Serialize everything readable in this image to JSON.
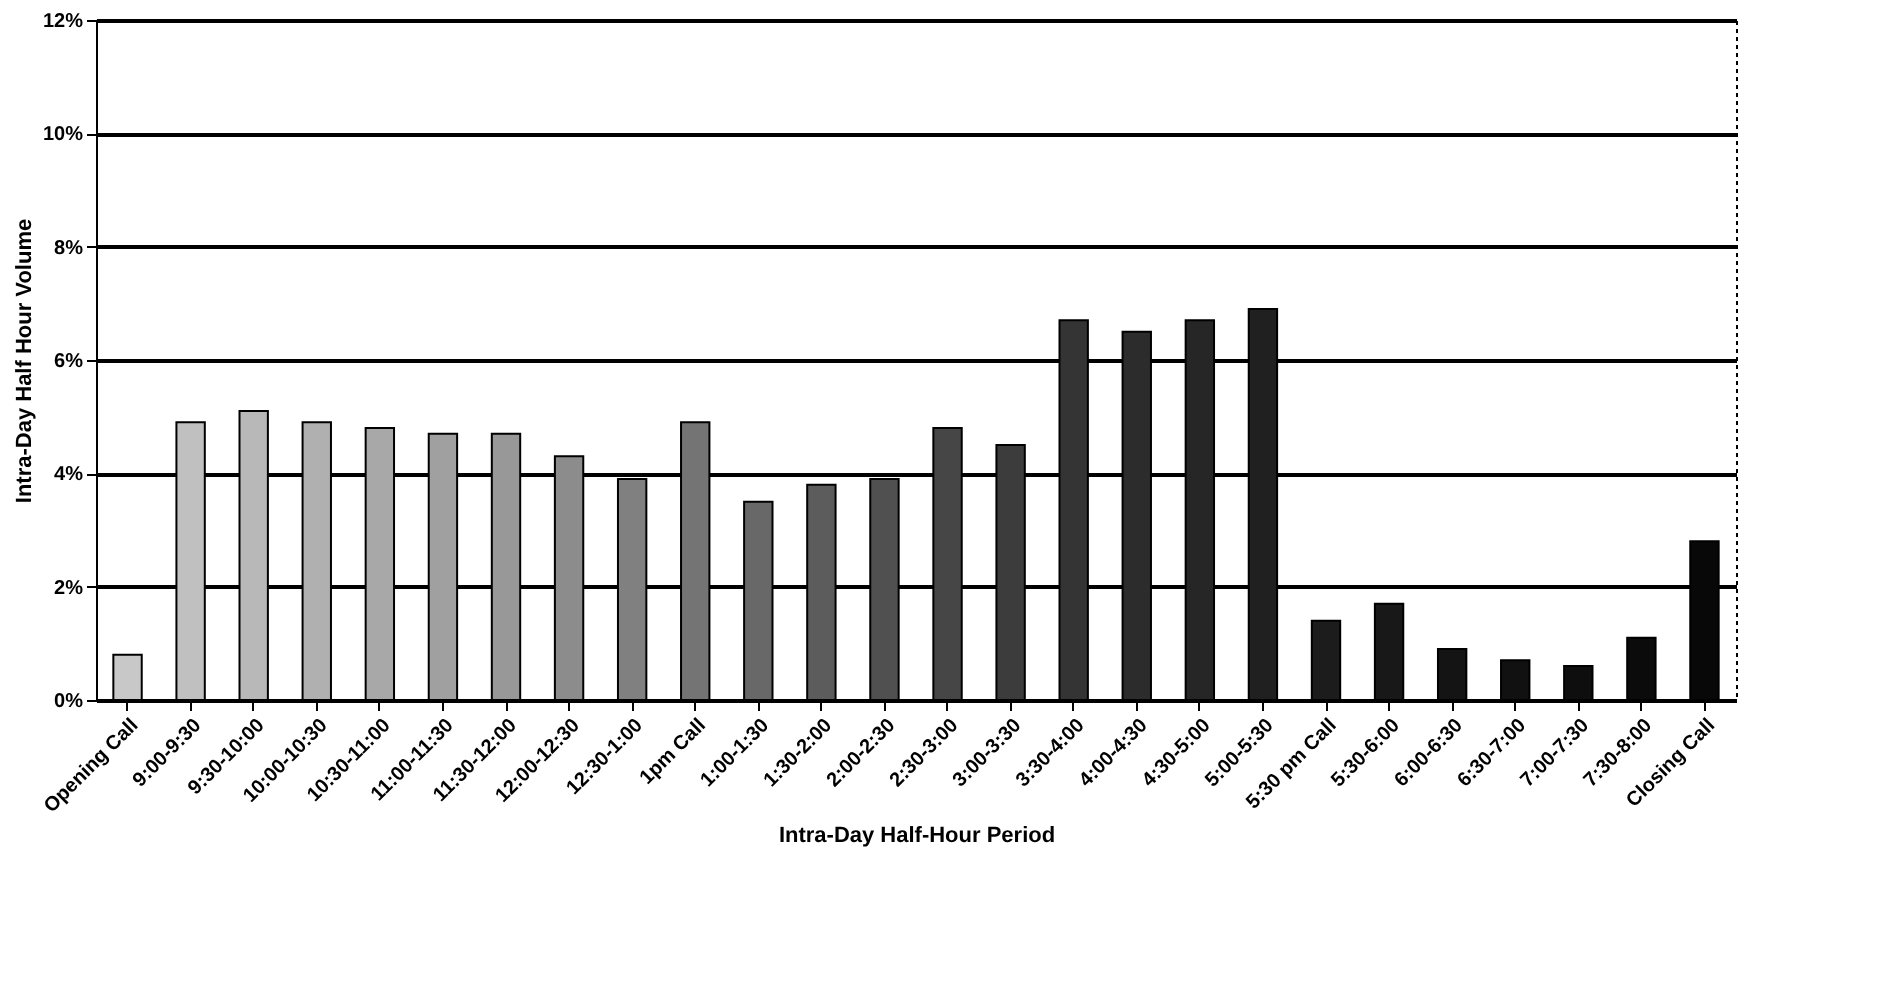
{
  "chart_data": {
    "type": "bar",
    "xlabel": "Intra-Day Half-Hour Period",
    "ylabel": "Intra-Day Half Hour Volume",
    "categories": [
      "Opening Call",
      "9:00-9:30",
      "9:30-10:00",
      "10:00-10:30",
      "10:30-11:00",
      "11:00-11:30",
      "11:30-12:00",
      "12:00-12:30",
      "12:30-1:00",
      "1pm Call",
      "1:00-1:30",
      "1:30-2:00",
      "2:00-2:30",
      "2:30-3:00",
      "3:00-3:30",
      "3:30-4:00",
      "4:00-4:30",
      "4:30-5:00",
      "5:00-5:30",
      "5:30 pm Call",
      "5:30-6:00",
      "6:00-6:30",
      "6:30-7:00",
      "7:00-7:30",
      "7:30-8:00",
      "Closing Call"
    ],
    "values": [
      0.8,
      4.9,
      5.1,
      4.9,
      4.8,
      4.7,
      4.7,
      4.3,
      3.9,
      4.9,
      3.5,
      3.8,
      3.9,
      4.8,
      4.5,
      6.7,
      6.5,
      6.7,
      6.9,
      1.4,
      1.7,
      0.9,
      0.7,
      0.6,
      1.1,
      2.8
    ],
    "colors": [
      "#c8c8c8",
      "#c0c0c0",
      "#b8b8b8",
      "#b0b0b0",
      "#a8a8a8",
      "#a0a0a0",
      "#989898",
      "#8c8c8c",
      "#808080",
      "#747474",
      "#686868",
      "#5c5c5c",
      "#505050",
      "#464646",
      "#3c3c3c",
      "#343434",
      "#2c2c2c",
      "#262626",
      "#202020",
      "#1c1c1c",
      "#181818",
      "#141414",
      "#111111",
      "#0e0e0e",
      "#0b0b0b",
      "#080808"
    ],
    "ylim": [
      0,
      12
    ],
    "yticks": [
      {
        "value": 0,
        "label": "0%"
      },
      {
        "value": 2,
        "label": "2%"
      },
      {
        "value": 4,
        "label": "4%"
      },
      {
        "value": 6,
        "label": "6%"
      },
      {
        "value": 8,
        "label": "8%"
      },
      {
        "value": 10,
        "label": "10%"
      },
      {
        "value": 12,
        "label": "12%"
      }
    ],
    "grid": "y",
    "legend": false
  }
}
